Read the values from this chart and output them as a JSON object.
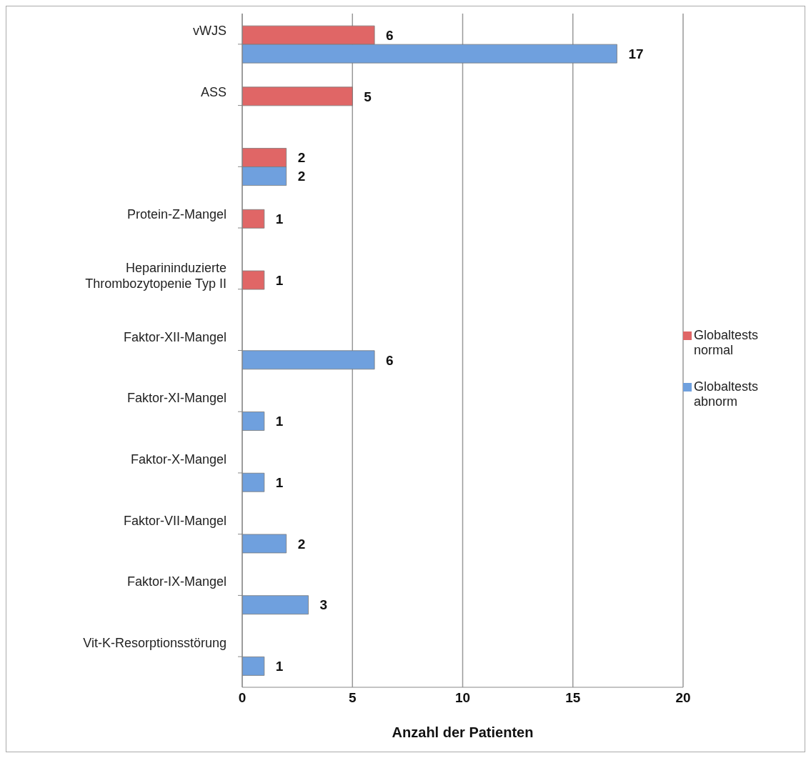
{
  "chart_data": {
    "type": "bar",
    "orientation": "horizontal",
    "xlabel": "Anzahl der Patienten",
    "categories": [
      "vWJS",
      "ASS",
      null,
      "Protein-Z-Mangel",
      "Heparininduzierte Thrombozytopenie Typ II",
      "Faktor-XII-Mangel",
      "Faktor-XI-Mangel",
      "Faktor-X-Mangel",
      "Faktor-VII-Mangel",
      "Faktor-IX-Mangel",
      "Vit-K-Resorptionsstörung"
    ],
    "series": [
      {
        "name": "Globaltests normal",
        "color": "#e06666",
        "values": [
          6,
          5,
          2,
          1,
          1,
          null,
          null,
          null,
          null,
          null,
          null
        ]
      },
      {
        "name": "Globaltests abnorm",
        "color": "#6fa0de",
        "values": [
          17,
          null,
          2,
          null,
          null,
          6,
          1,
          1,
          2,
          3,
          1
        ]
      }
    ],
    "xlim": [
      0,
      20
    ],
    "xticks": [
      0,
      5,
      10,
      15,
      20
    ],
    "grid": "x",
    "legend": "right",
    "data_labels": true
  }
}
